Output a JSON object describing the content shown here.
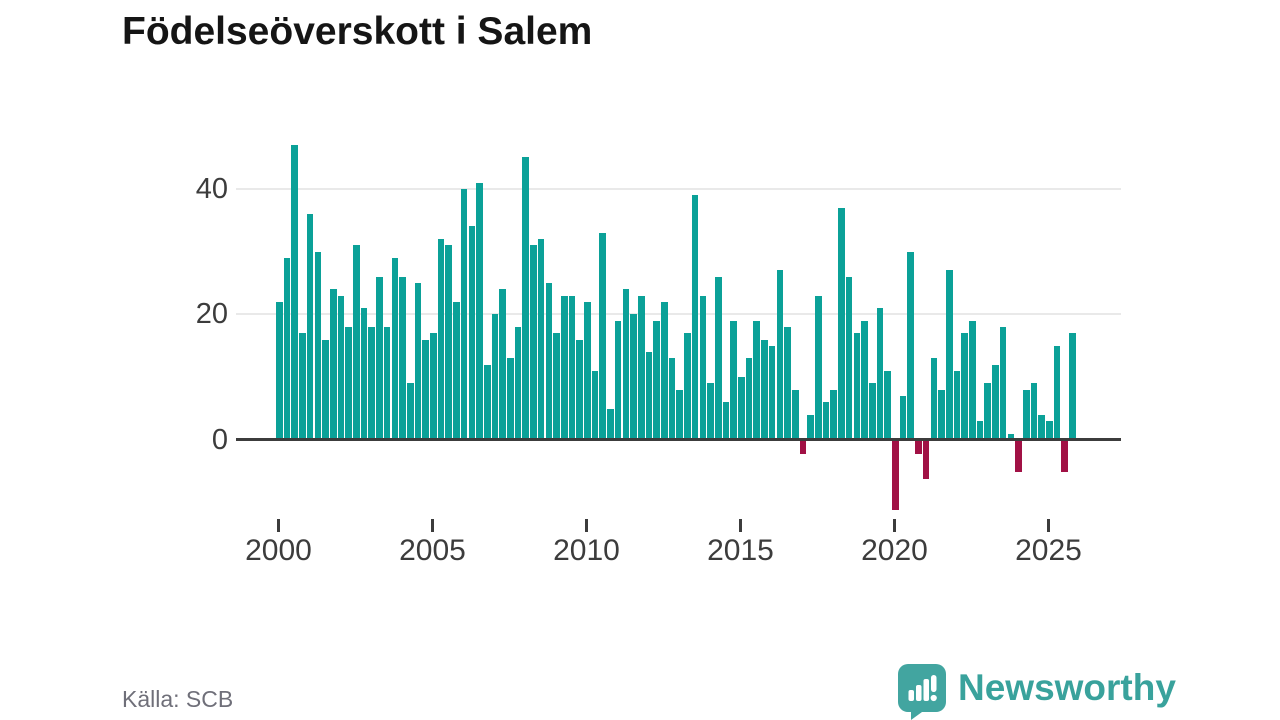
{
  "title": "Födelseöverskott i Salem",
  "source": "Källa: SCB",
  "brand": {
    "name": "Newsworthy",
    "color": "#3aa29c"
  },
  "chart_data": {
    "type": "bar",
    "title": "Födelseöverskott i Salem",
    "unit_period": "quarter",
    "start": "2000-Q1",
    "end": "2025-Q4",
    "values": [
      22,
      29,
      47,
      17,
      36,
      30,
      16,
      24,
      23,
      18,
      31,
      21,
      18,
      26,
      18,
      29,
      26,
      9,
      25,
      16,
      17,
      32,
      31,
      22,
      40,
      34,
      41,
      12,
      20,
      24,
      13,
      18,
      45,
      31,
      32,
      25,
      17,
      23,
      23,
      16,
      22,
      11,
      33,
      5,
      19,
      24,
      20,
      23,
      14,
      19,
      22,
      13,
      8,
      17,
      39,
      23,
      9,
      26,
      6,
      19,
      10,
      13,
      19,
      16,
      15,
      27,
      18,
      8,
      -2,
      4,
      23,
      6,
      8,
      37,
      26,
      17,
      19,
      9,
      21,
      11,
      -11,
      7,
      30,
      -2,
      -6,
      13,
      8,
      27,
      11,
      17,
      19,
      3,
      9,
      12,
      18,
      1,
      -5,
      8,
      9,
      4,
      3,
      15,
      -5,
      17
    ],
    "x_tick_labels": [
      "2000",
      "2005",
      "2010",
      "2015",
      "2020",
      "2025"
    ],
    "y_tick_labels": [
      "0",
      "20",
      "40"
    ],
    "y_ticks": [
      0,
      20,
      40
    ],
    "ylim": [
      -12,
      50
    ],
    "grid": true,
    "legend": "none",
    "positive_color": "#0ba198",
    "negative_color": "#a11145",
    "axis_color": "#3c3c3c",
    "grid_color": "#e9e9e9"
  }
}
